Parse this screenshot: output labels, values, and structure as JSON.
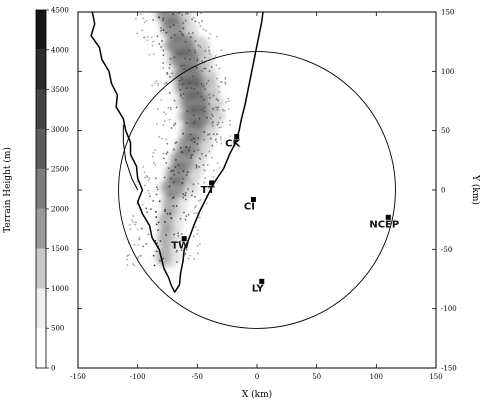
{
  "figure": {
    "colorbar_label": "Terrain Height (m)",
    "xlabel": "X (km)",
    "ylabel": "Y (km)",
    "xticks": [
      -150,
      -100,
      -50,
      0,
      50,
      100,
      150
    ],
    "yticks_right": [
      150,
      100,
      50,
      0,
      -50,
      -100,
      -150
    ],
    "colorbar_ticks": [
      0,
      500,
      1000,
      1500,
      2000,
      2500,
      3000,
      3500,
      4000,
      4500
    ]
  },
  "colorbar_levels": [
    {
      "from": 0,
      "to": 500,
      "color": "#ffffff"
    },
    {
      "from": 500,
      "to": 1000,
      "color": "#f0f0f0"
    },
    {
      "from": 1000,
      "to": 1500,
      "color": "#c8c8c8"
    },
    {
      "from": 1500,
      "to": 2000,
      "color": "#9a9a9a"
    },
    {
      "from": 2000,
      "to": 2500,
      "color": "#7c7c7c"
    },
    {
      "from": 2500,
      "to": 3000,
      "color": "#5c5c5c"
    },
    {
      "from": 3000,
      "to": 3500,
      "color": "#444444"
    },
    {
      "from": 3500,
      "to": 4000,
      "color": "#2a2a2a"
    },
    {
      "from": 4000,
      "to": 4500,
      "color": "#161616"
    }
  ],
  "range_ring": {
    "center_x_km": 0,
    "center_y_km": 0,
    "radius_km": 116
  },
  "stations": [
    {
      "label": "CK",
      "x_km": -17,
      "y_km": 45
    },
    {
      "label": "TT",
      "x_km": -38,
      "y_km": 6
    },
    {
      "label": "CI",
      "x_km": -3,
      "y_km": -8
    },
    {
      "label": "TW",
      "x_km": -61,
      "y_km": -41
    },
    {
      "label": "LY",
      "x_km": 4,
      "y_km": -77
    },
    {
      "label": "NCEP",
      "x_km": 110,
      "y_km": -23
    }
  ],
  "coastline_km": [
    [
      -138,
      150
    ],
    [
      -136,
      140
    ],
    [
      -139,
      130
    ],
    [
      -132,
      120
    ],
    [
      -130,
      110
    ],
    [
      -124,
      100
    ],
    [
      -122,
      90
    ],
    [
      -117,
      80
    ],
    [
      -118,
      70
    ],
    [
      -112,
      60
    ],
    [
      -110,
      50
    ],
    [
      -106,
      40
    ],
    [
      -106,
      30
    ],
    [
      -101,
      20
    ],
    [
      -100,
      10
    ],
    [
      -96,
      0
    ],
    [
      -100,
      -10
    ],
    [
      -96,
      -20
    ],
    [
      -90,
      -30
    ],
    [
      -88,
      -40
    ],
    [
      -82,
      -50
    ],
    [
      -80,
      -58
    ],
    [
      -78,
      -66
    ],
    [
      -74,
      -74
    ],
    [
      -72,
      -80
    ],
    [
      -69,
      -86
    ],
    [
      -65,
      -80
    ],
    [
      -64,
      -70
    ],
    [
      -62,
      -60
    ],
    [
      -61,
      -50
    ],
    [
      -57,
      -41
    ],
    [
      -53,
      -30
    ],
    [
      -48,
      -18
    ],
    [
      -42,
      -6
    ],
    [
      -36,
      6
    ],
    [
      -28,
      18
    ],
    [
      -23,
      30
    ],
    [
      -18,
      40
    ],
    [
      -15,
      50
    ],
    [
      -13,
      60
    ],
    [
      -10,
      72
    ],
    [
      -8,
      82
    ],
    [
      -6,
      92
    ],
    [
      -4,
      102
    ],
    [
      -2,
      112
    ],
    [
      0,
      122
    ],
    [
      2,
      132
    ],
    [
      4,
      142
    ],
    [
      5,
      150
    ]
  ],
  "western_plain_line_km": [
    [
      -112,
      55
    ],
    [
      -112,
      40
    ],
    [
      -110,
      25
    ],
    [
      -105,
      10
    ],
    [
      -100,
      0
    ]
  ],
  "terrain_ridge_km": [
    [
      -74,
      148
    ],
    [
      -70,
      136
    ],
    [
      -64,
      122
    ],
    [
      -60,
      110
    ],
    [
      -57,
      96
    ],
    [
      -55,
      86
    ],
    [
      -52,
      74
    ],
    [
      -51,
      62
    ],
    [
      -53,
      50
    ],
    [
      -57,
      38
    ],
    [
      -62,
      26
    ],
    [
      -66,
      14
    ],
    [
      -70,
      2
    ],
    [
      -73,
      -12
    ],
    [
      -76,
      -26
    ],
    [
      -77,
      -40
    ],
    [
      -78,
      -56
    ]
  ]
}
